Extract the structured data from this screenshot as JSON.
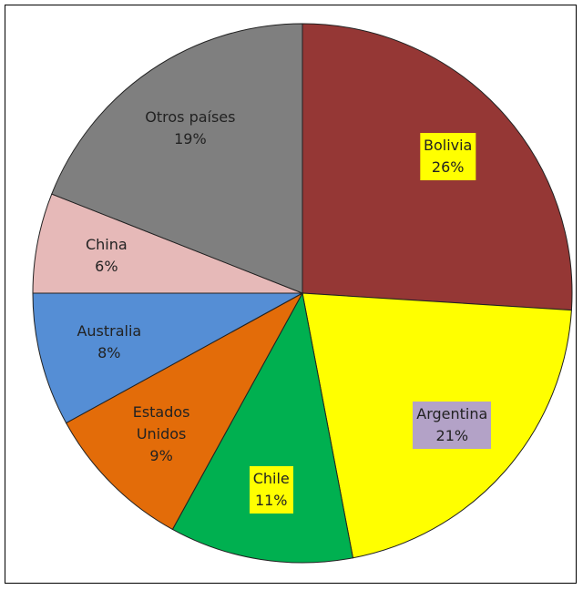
{
  "chart_data": {
    "type": "pie",
    "categories": [
      "Bolivia",
      "Argentina",
      "Chile",
      "Estados Unidos",
      "Australia",
      "China",
      "Otros países"
    ],
    "values": [
      26,
      21,
      11,
      9,
      8,
      6,
      19
    ],
    "value_labels": [
      "26%",
      "21%",
      "11%",
      "9%",
      "8%",
      "6%",
      "19%"
    ],
    "colors": [
      "#953735",
      "#ffff00",
      "#00b050",
      "#e36c09",
      "#558ed5",
      "#e6b9b8",
      "#7f7f7f"
    ],
    "label_backgrounds": [
      "#ffff00",
      "#b3a2c7",
      "#ffff00",
      null,
      null,
      null,
      null
    ]
  }
}
